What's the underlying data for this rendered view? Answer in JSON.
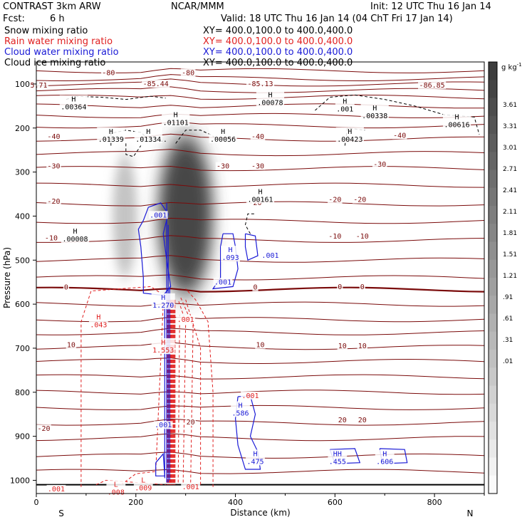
{
  "header": {
    "model": "CONTRAST   3km ARW",
    "org": "NCAR/MMM",
    "init": "Init: 12 UTC Thu 16 Jan 14",
    "fcst_label": "Fcst:",
    "fcst_value": "6 h",
    "valid": "Valid: 18 UTC Thu 16 Jan 14 (04 ChT Fri 17 Jan 14)"
  },
  "legend": [
    {
      "name": "Snow mixing ratio",
      "xy": "XY= 400.0,100.0 to 400.0,400.0",
      "color": "#000000"
    },
    {
      "name": "Rain water mixing ratio",
      "xy": "XY= 400.0,100.0 to 400.0,400.0",
      "color": "#e02020"
    },
    {
      "name": "Cloud water mixing ratio",
      "xy": "XY= 400.0,100.0 to 400.0,400.0",
      "color": "#1a1ad6"
    },
    {
      "name": "Cloud ice mixing ratio",
      "xy": "XY= 400.0,100.0 to 400.0,400.0",
      "color": "#000000"
    }
  ],
  "colorbar": {
    "unit": "g kg",
    "unit_exp": "-1",
    "ticks": [
      "3.61",
      "3.31",
      "3.01",
      "2.71",
      "2.41",
      "2.11",
      "1.81",
      "1.51",
      "1.21",
      ".91",
      ".61",
      ".31",
      ".01"
    ]
  },
  "chart_data": {
    "type": "contour",
    "xlabel": "Distance (km)",
    "ylabel": "Pressure (hPa)",
    "xlim": [
      0,
      900
    ],
    "ylim": [
      1030,
      50
    ],
    "x_ticks": [
      "0",
      "200",
      "400",
      "600",
      "800"
    ],
    "x_tick_values": [
      0,
      200,
      400,
      600,
      800
    ],
    "y_ticks": [
      "100",
      "200",
      "300",
      "400",
      "500",
      "600",
      "700",
      "800",
      "900",
      "1000"
    ],
    "y_tick_values": [
      100,
      200,
      300,
      400,
      500,
      600,
      700,
      800,
      900,
      1000
    ],
    "left_end_label": "S",
    "right_end_label": "N",
    "colors": {
      "temperature": "#7a0a0a",
      "rain": "#e02020",
      "cloud_water": "#1a1ad6",
      "cloud_ice": "#000000"
    },
    "temperature_labels": [
      {
        "x": 145,
        "p": 80,
        "t": "-80"
      },
      {
        "x": 305,
        "p": 80,
        "t": "-80"
      },
      {
        "x": 240,
        "p": 105,
        "t": "-85.44"
      },
      {
        "x": 450,
        "p": 105,
        "t": "-85.13"
      },
      {
        "x": 5,
        "p": 108,
        "t": "5.71"
      },
      {
        "x": 795,
        "p": 108,
        "t": "-86.85"
      },
      {
        "x": 35,
        "p": 225,
        "t": "-40"
      },
      {
        "x": 445,
        "p": 225,
        "t": "-40"
      },
      {
        "x": 730,
        "p": 222,
        "t": "-40"
      },
      {
        "x": 35,
        "p": 292,
        "t": "-30"
      },
      {
        "x": 375,
        "p": 292,
        "t": "-30"
      },
      {
        "x": 445,
        "p": 292,
        "t": "-30"
      },
      {
        "x": 690,
        "p": 288,
        "t": "-30"
      },
      {
        "x": 35,
        "p": 372,
        "t": "-20"
      },
      {
        "x": 440,
        "p": 375,
        "t": "-20"
      },
      {
        "x": 600,
        "p": 368,
        "t": "-20"
      },
      {
        "x": 650,
        "p": 368,
        "t": "-20"
      },
      {
        "x": 30,
        "p": 455,
        "t": "-10"
      },
      {
        "x": 600,
        "p": 451,
        "t": "-10"
      },
      {
        "x": 655,
        "p": 451,
        "t": "-10"
      },
      {
        "x": 60,
        "p": 567,
        "t": "0"
      },
      {
        "x": 440,
        "p": 567,
        "t": "0"
      },
      {
        "x": 610,
        "p": 566,
        "t": "0"
      },
      {
        "x": 655,
        "p": 566,
        "t": "0"
      },
      {
        "x": 70,
        "p": 698,
        "t": "10"
      },
      {
        "x": 450,
        "p": 698,
        "t": "10"
      },
      {
        "x": 615,
        "p": 700,
        "t": "10"
      },
      {
        "x": 655,
        "p": 700,
        "t": "10"
      },
      {
        "x": 310,
        "p": 873,
        "t": "20"
      },
      {
        "x": 615,
        "p": 868,
        "t": "20"
      },
      {
        "x": 655,
        "p": 868,
        "t": "20"
      },
      {
        "x": 15,
        "p": 888,
        "t": "-20"
      }
    ],
    "cloud_ice_labels": [
      {
        "x": 75,
        "p": 140,
        "t": "H\n.00364"
      },
      {
        "x": 470,
        "p": 130,
        "t": "H\n.00078"
      },
      {
        "x": 620,
        "p": 145,
        "t": "H\n.001"
      },
      {
        "x": 680,
        "p": 160,
        "t": "H\n.00338"
      },
      {
        "x": 845,
        "p": 180,
        "t": "H\n.00616"
      },
      {
        "x": 280,
        "p": 175,
        "t": "H\n.01101"
      },
      {
        "x": 150,
        "p": 213,
        "t": "H\n.01339"
      },
      {
        "x": 225,
        "p": 213,
        "t": "H\n.01334"
      },
      {
        "x": 375,
        "p": 213,
        "t": "H\n.00056"
      },
      {
        "x": 630,
        "p": 213,
        "t": "H\n.00423"
      },
      {
        "x": 450,
        "p": 350,
        "t": "H\n.00161"
      },
      {
        "x": 78,
        "p": 440,
        "t": "H\n.00008"
      }
    ],
    "cloud_water_labels": [
      {
        "x": 245,
        "p": 403,
        "t": ".001"
      },
      {
        "x": 390,
        "p": 482,
        "t": "H\n.093"
      },
      {
        "x": 470,
        "p": 495,
        "t": ".001"
      },
      {
        "x": 375,
        "p": 555,
        "t": ".001"
      },
      {
        "x": 255,
        "p": 590,
        "t": "H\n1.270"
      },
      {
        "x": 410,
        "p": 835,
        "t": "H\n.586"
      },
      {
        "x": 440,
        "p": 945,
        "t": "H\n.475"
      },
      {
        "x": 605,
        "p": 945,
        "t": "HH\n.455"
      },
      {
        "x": 700,
        "p": 945,
        "t": "H\n.606"
      },
      {
        "x": 255,
        "p": 880,
        "t": ".001"
      }
    ],
    "rain_labels": [
      {
        "x": 125,
        "p": 635,
        "t": "H\n.043"
      },
      {
        "x": 255,
        "p": 692,
        "t": "H\n1.553"
      },
      {
        "x": 300,
        "p": 640,
        "t": ".001"
      },
      {
        "x": 430,
        "p": 813,
        "t": ".001"
      },
      {
        "x": 40,
        "p": 1025,
        "t": ".001"
      },
      {
        "x": 160,
        "p": 1015,
        "t": "L\n.008"
      },
      {
        "x": 215,
        "p": 1005,
        "t": "L\n.009"
      },
      {
        "x": 310,
        "p": 1020,
        "t": ".001"
      }
    ],
    "snow_shading": [
      {
        "x": 300,
        "p_top": 215,
        "p_bot": 580,
        "half_width_km": 55,
        "max": 3.4
      },
      {
        "x": 178,
        "p_top": 260,
        "p_bot": 540,
        "half_width_km": 25,
        "max": 1.1
      }
    ]
  }
}
